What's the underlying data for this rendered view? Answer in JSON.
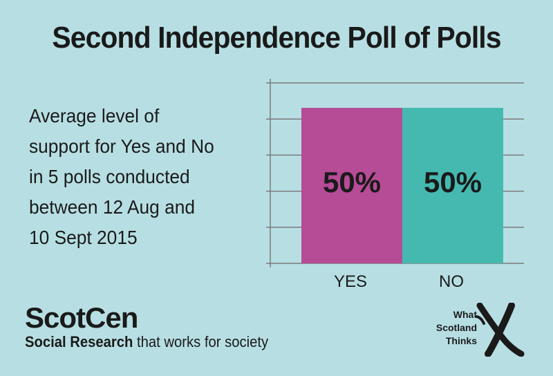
{
  "title": "Second Independence Poll of Polls",
  "description_lines": [
    "Average level of",
    "support for Yes and No",
    "in 5 polls conducted",
    "between 12 Aug and",
    "10 Sept 2015"
  ],
  "chart_data": {
    "type": "bar",
    "categories": [
      "YES",
      "NO"
    ],
    "values": [
      50,
      50
    ],
    "data_labels": [
      "50%",
      "50%"
    ],
    "colors": [
      "#b64b96",
      "#45b9b0"
    ],
    "ylim": [
      0,
      58
    ],
    "grid": true,
    "title": "",
    "xlabel": "",
    "ylabel": ""
  },
  "brand": {
    "name": "ScotCen",
    "tagline_bold": "Social Research",
    "tagline_rest": " that works for society"
  },
  "logo": {
    "lines": [
      "What",
      "Scotland",
      "Thinks"
    ],
    "mark": "x-mark-icon"
  }
}
